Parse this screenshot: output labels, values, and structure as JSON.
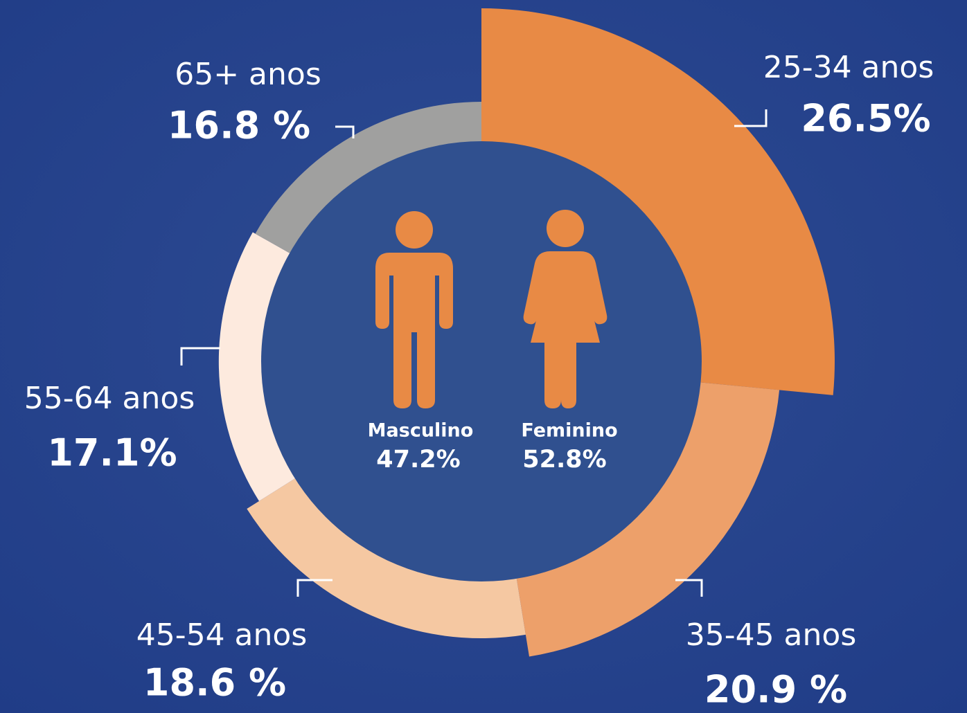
{
  "chart_data": [
    {
      "type": "pie",
      "categories": [
        "25-34 anos",
        "35-45 anos",
        "45-54 anos",
        "55-64 anos",
        "65+ anos"
      ],
      "values": [
        26.5,
        20.9,
        18.6,
        17.1,
        16.8
      ],
      "value_labels": [
        "26.5%",
        "20.9 %",
        "18.6 %",
        "17.1%",
        "16.8 %"
      ],
      "colors": [
        "#e88a45",
        "#eda06a",
        "#f5c8a2",
        "#fdeade",
        "#a0a09f"
      ]
    },
    {
      "type": "pictogram",
      "categories": [
        "Masculino",
        "Feminino"
      ],
      "values": [
        47.2,
        52.8
      ],
      "value_labels": [
        "47.2%",
        "52.8%"
      ],
      "color": "#e88a45"
    }
  ]
}
